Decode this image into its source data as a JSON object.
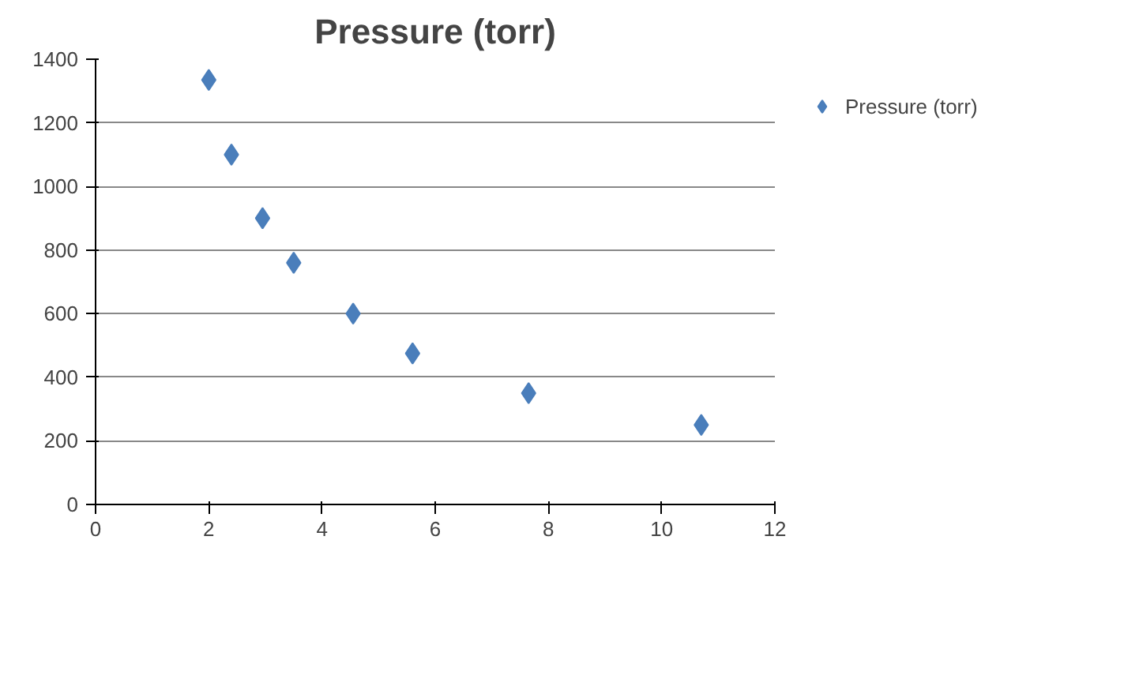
{
  "chart_data": {
    "type": "scatter",
    "title": "Pressure (torr)",
    "x": [
      2,
      2.4,
      2.95,
      3.5,
      4.55,
      5.6,
      7.65,
      10.7
    ],
    "series": [
      {
        "name": "Pressure (torr)",
        "color": "#4a7ebb",
        "values": [
          1335,
          1100,
          900,
          760,
          600,
          475,
          350,
          250
        ]
      }
    ],
    "xlim": [
      0,
      12
    ],
    "xticks": [
      0,
      2,
      4,
      6,
      8,
      10,
      12
    ],
    "ylim": [
      0,
      1400
    ],
    "yticks": [
      0,
      200,
      400,
      600,
      800,
      1000,
      1200,
      1400
    ],
    "grid": "y",
    "legend": "right",
    "marker": "diamond"
  }
}
